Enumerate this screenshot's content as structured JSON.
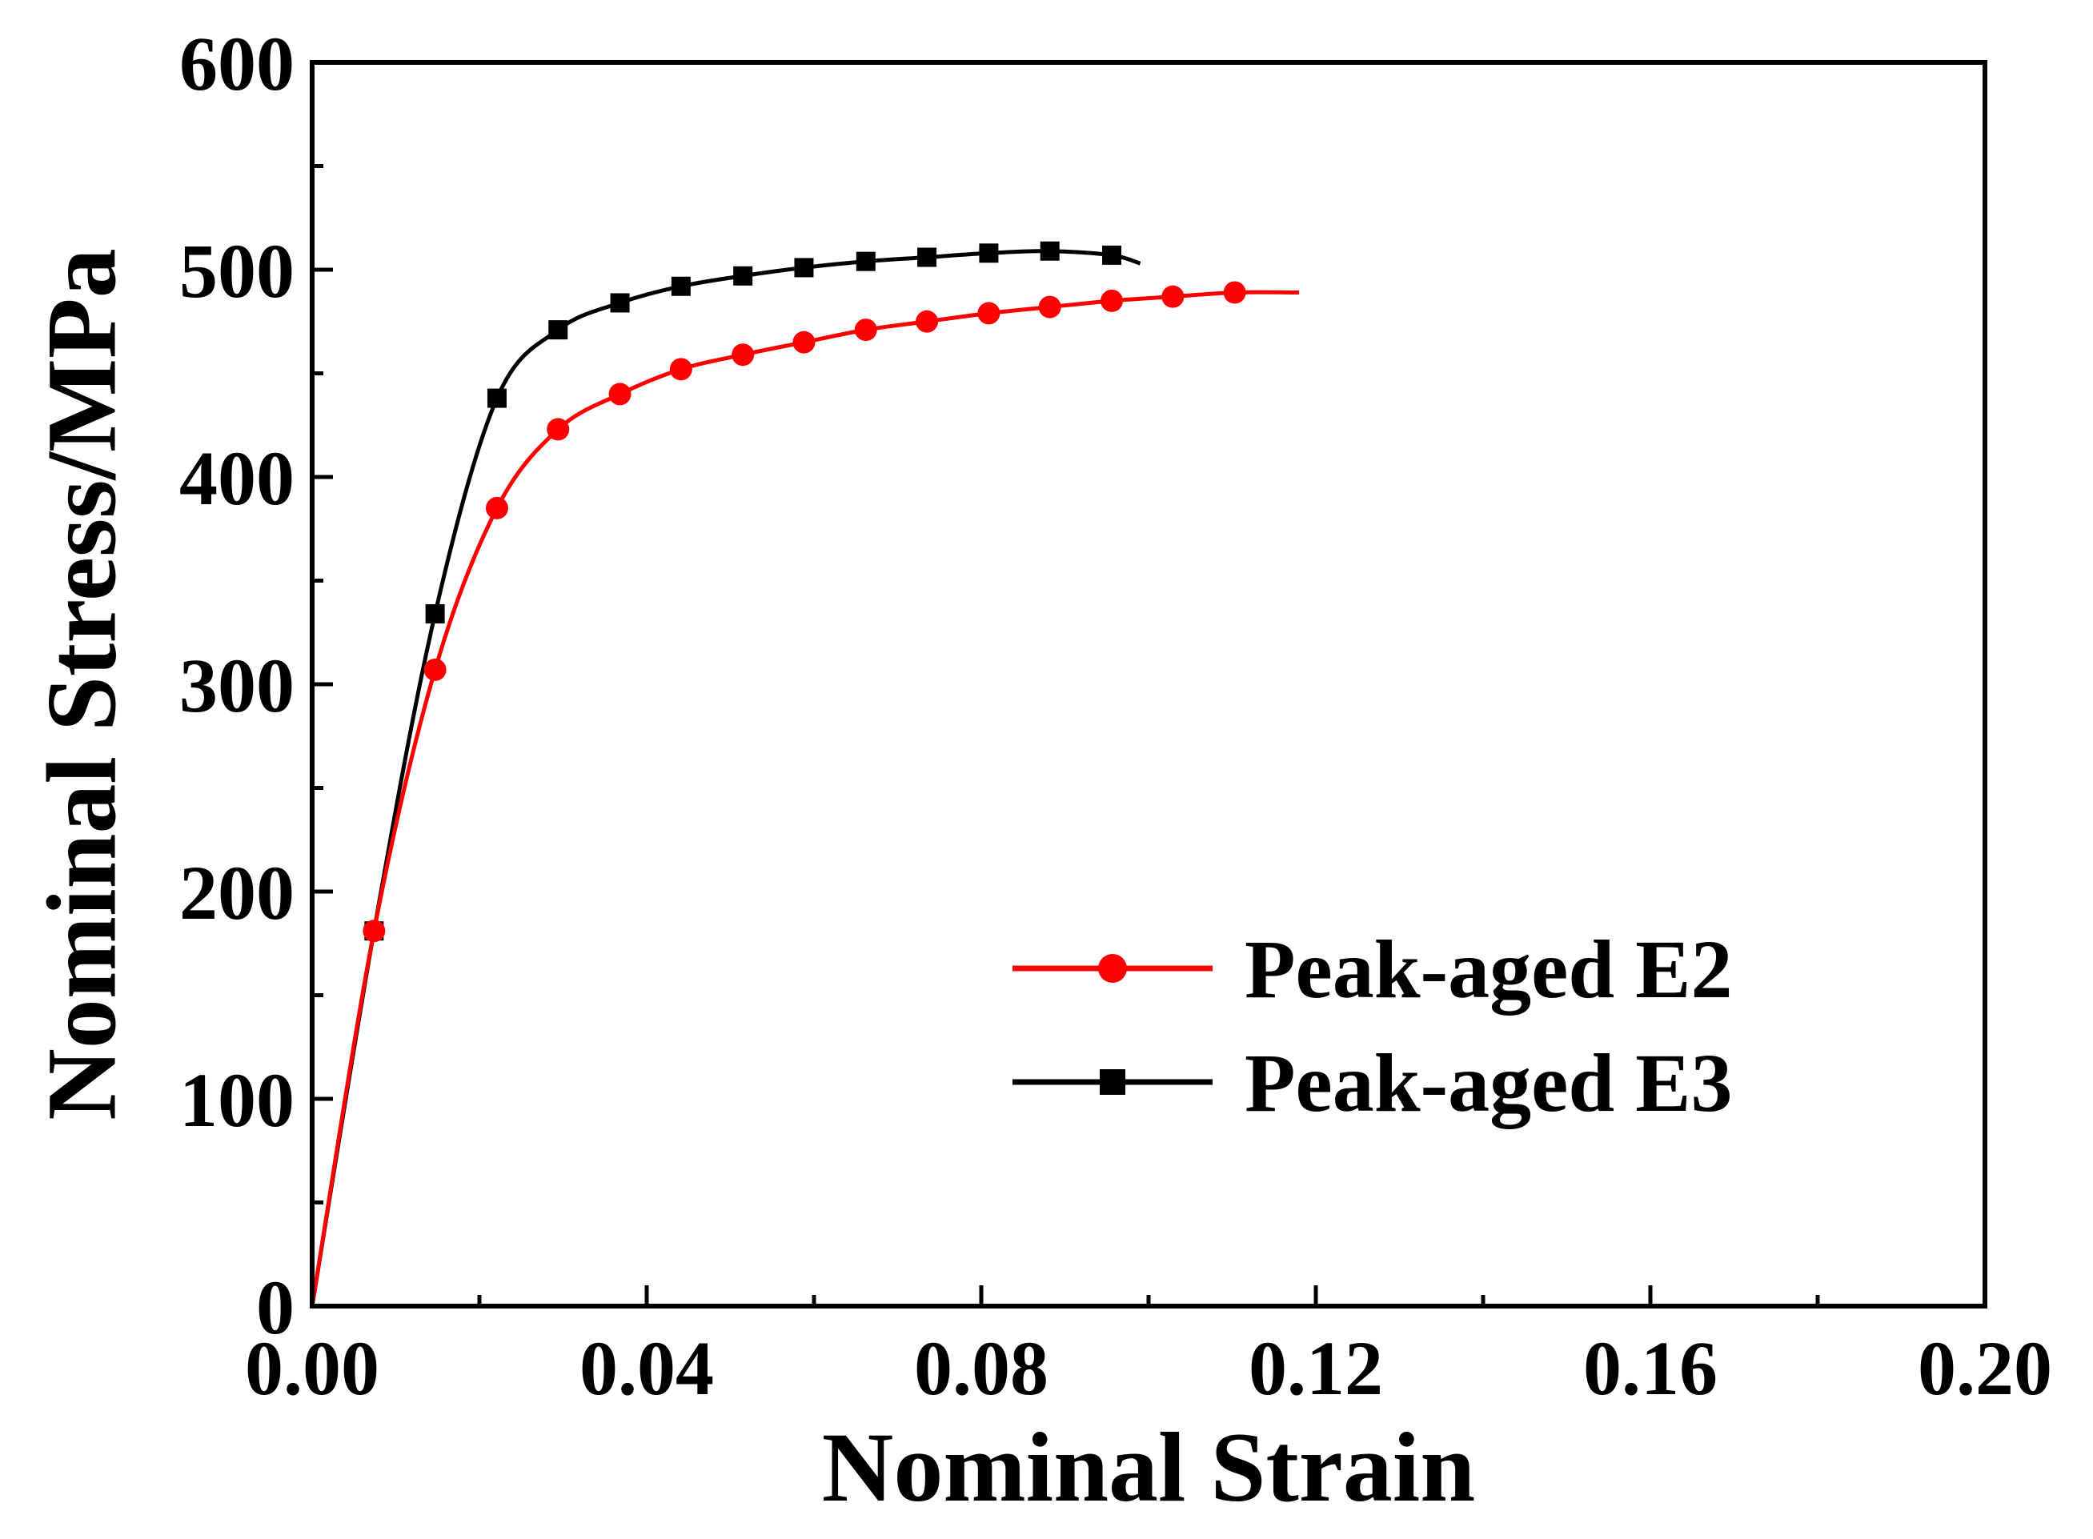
{
  "chart_data": {
    "type": "line",
    "xlabel": "Nominal Strain",
    "ylabel": "Nominal Stress/MPa",
    "xlim": [
      0,
      0.2
    ],
    "ylim": [
      0,
      600
    ],
    "xticks": [
      0.0,
      0.04,
      0.08,
      0.12,
      0.16,
      0.2
    ],
    "xtick_labels": [
      "0.00",
      "0.04",
      "0.08",
      "0.12",
      "0.16",
      "0.20"
    ],
    "yticks": [
      0,
      100,
      200,
      300,
      400,
      500,
      600
    ],
    "ytick_labels": [
      "0",
      "100",
      "200",
      "300",
      "400",
      "500",
      "600"
    ],
    "grid": false,
    "legend_position": "bottom-right",
    "series": [
      {
        "name": "Peak-aged E2",
        "color": "#ff0000",
        "marker": "circle",
        "x": [
          0.0,
          0.0074,
          0.0147,
          0.0221,
          0.0294,
          0.0368,
          0.0441,
          0.0515,
          0.0588,
          0.0662,
          0.0735,
          0.0809,
          0.0882,
          0.0956,
          0.1029,
          0.1103,
          0.118
        ],
        "y": [
          0,
          181,
          307,
          385,
          423,
          440,
          452,
          459,
          465,
          471,
          475,
          479,
          482,
          485,
          487,
          489,
          489
        ]
      },
      {
        "name": "Peak-aged E3",
        "color": "#000000",
        "marker": "square",
        "x": [
          0.0,
          0.0074,
          0.0147,
          0.0221,
          0.0294,
          0.0368,
          0.0441,
          0.0515,
          0.0588,
          0.0662,
          0.0735,
          0.0809,
          0.0882,
          0.0956,
          0.099
        ],
        "y": [
          0,
          181,
          334,
          438,
          471,
          484,
          492,
          497,
          501,
          504,
          506,
          508,
          509,
          507,
          503
        ]
      }
    ]
  }
}
